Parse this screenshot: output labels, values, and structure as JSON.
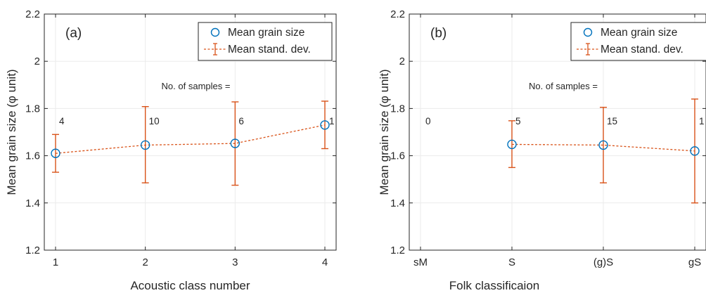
{
  "chart_data": [
    {
      "type": "line",
      "panel_label": "(a)",
      "xlabel": "Acoustic class number",
      "ylabel": "Mean grain size (φ unit)",
      "ylim": [
        1.2,
        2.2
      ],
      "yticks": [
        "1.2",
        "1.4",
        "1.6",
        "1.8",
        "2",
        "2.2"
      ],
      "categories": [
        "1",
        "2",
        "3",
        "4"
      ],
      "grid": true,
      "legend": {
        "placement": "top-right",
        "entries": [
          "Mean grain size",
          "Mean stand. dev."
        ]
      },
      "annotation": "No. of samples =",
      "series": [
        {
          "name": "Mean grain size",
          "values": [
            1.61,
            1.645,
            1.652,
            1.73
          ],
          "err_low": [
            1.53,
            1.485,
            1.475,
            1.63
          ],
          "err_high": [
            1.69,
            1.808,
            1.828,
            1.831
          ],
          "counts": [
            "4",
            "10",
            "6",
            "1"
          ]
        }
      ],
      "colors": {
        "marker": "#0072BD",
        "errorbar": "#D95319"
      }
    },
    {
      "type": "line",
      "panel_label": "(b)",
      "xlabel": "Folk classificaion",
      "ylabel": "Mean grain size (φ unit)",
      "ylim": [
        1.2,
        2.2
      ],
      "yticks": [
        "1.2",
        "1.4",
        "1.6",
        "1.8",
        "2",
        "2.2"
      ],
      "categories": [
        "sM",
        "S",
        "(g)S",
        "gS"
      ],
      "grid": true,
      "legend": {
        "placement": "top-right",
        "entries": [
          "Mean grain size",
          "Mean stand. dev."
        ]
      },
      "annotation": "No. of samples =",
      "series": [
        {
          "name": "Mean grain size",
          "values": [
            null,
            1.648,
            1.645,
            1.62
          ],
          "err_low": [
            null,
            1.55,
            1.485,
            1.4
          ],
          "err_high": [
            null,
            1.748,
            1.805,
            1.84
          ],
          "counts": [
            "0",
            "5",
            "15",
            "1"
          ]
        }
      ],
      "colors": {
        "marker": "#0072BD",
        "errorbar": "#D95319"
      }
    }
  ]
}
